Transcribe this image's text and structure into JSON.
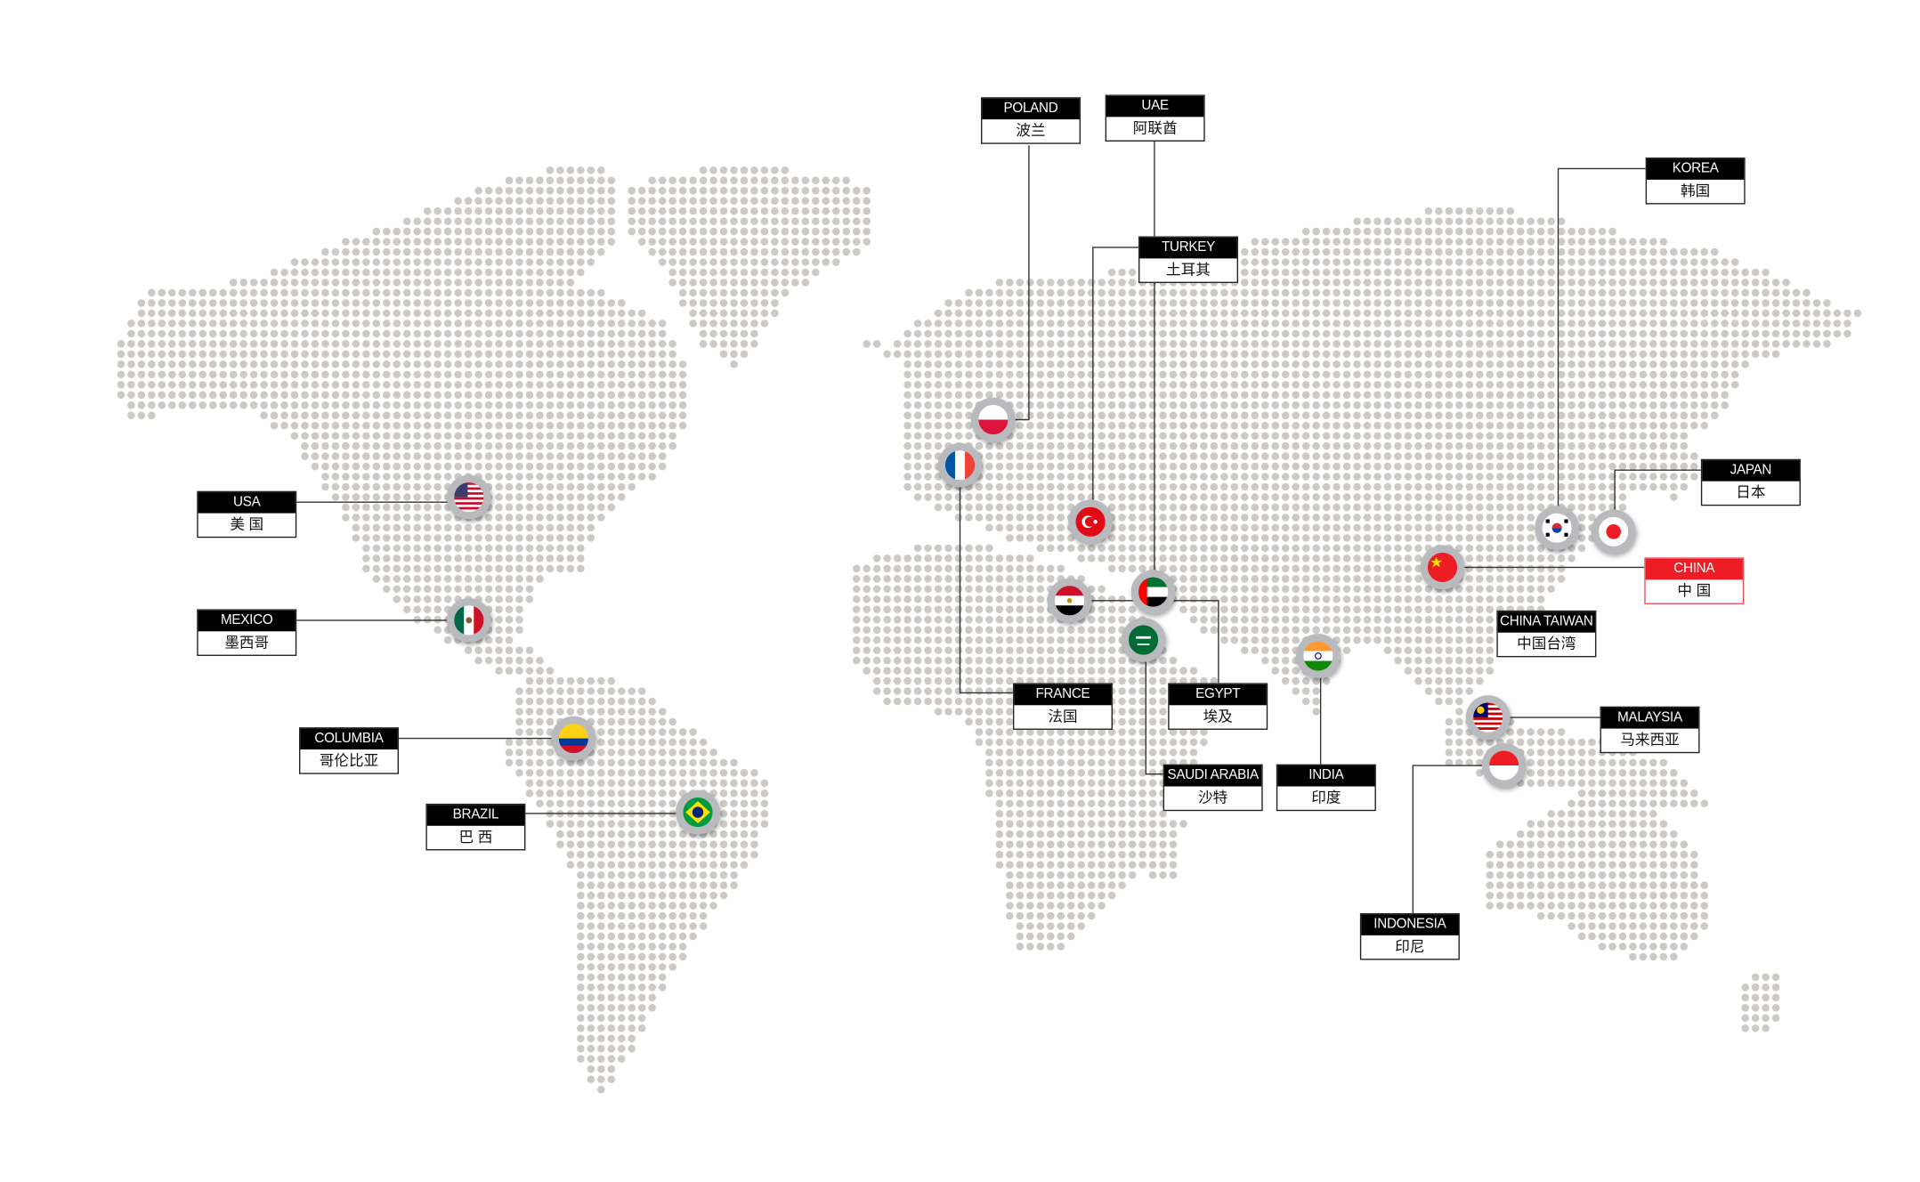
{
  "colors": {
    "dot": "#cdcac6",
    "label_header": "#000000",
    "highlight": "#ee1c25",
    "line": "#333333"
  },
  "locations": [
    {
      "id": "usa",
      "en": "USA",
      "zh": "美 国",
      "flag": "usa-flag"
    },
    {
      "id": "mexico",
      "en": "MEXICO",
      "zh": "墨西哥",
      "flag": "mexico-flag"
    },
    {
      "id": "columbia",
      "en": "COLUMBIA",
      "zh": "哥伦比亚",
      "flag": "colombia-flag"
    },
    {
      "id": "brazil",
      "en": "BRAZIL",
      "zh": "巴 西",
      "flag": "brazil-flag"
    },
    {
      "id": "poland",
      "en": "POLAND",
      "zh": "波兰",
      "flag": "poland-flag"
    },
    {
      "id": "uae",
      "en": "UAE",
      "zh": "阿联酋",
      "flag": "uae-flag"
    },
    {
      "id": "turkey",
      "en": "TURKEY",
      "zh": "土耳其",
      "flag": "turkey-flag"
    },
    {
      "id": "korea",
      "en": "KOREA",
      "zh": "韩国",
      "flag": "korea-flag"
    },
    {
      "id": "japan",
      "en": "JAPAN",
      "zh": "日本",
      "flag": "japan-flag"
    },
    {
      "id": "china",
      "en": "CHINA",
      "zh": "中 国",
      "flag": "china-flag",
      "highlighted": true
    },
    {
      "id": "china_taiwan",
      "en": "CHINA TAIWAN",
      "zh": "中国台湾"
    },
    {
      "id": "france",
      "en": "FRANCE",
      "zh": "法国",
      "flag": "france-flag"
    },
    {
      "id": "egypt",
      "en": "EGYPT",
      "zh": "埃及",
      "flag": "egypt-flag"
    },
    {
      "id": "saudi_arabia",
      "en": "SAUDI ARABIA",
      "zh": "沙特",
      "flag": "saudi-arabia-flag"
    },
    {
      "id": "india",
      "en": "INDIA",
      "zh": "印度",
      "flag": "india-flag"
    },
    {
      "id": "malaysia",
      "en": "MALAYSIA",
      "zh": "马来西亚",
      "flag": "malaysia-flag"
    },
    {
      "id": "indonesia",
      "en": "INDONESIA",
      "zh": "印尼",
      "flag": "indonesia-flag"
    }
  ]
}
